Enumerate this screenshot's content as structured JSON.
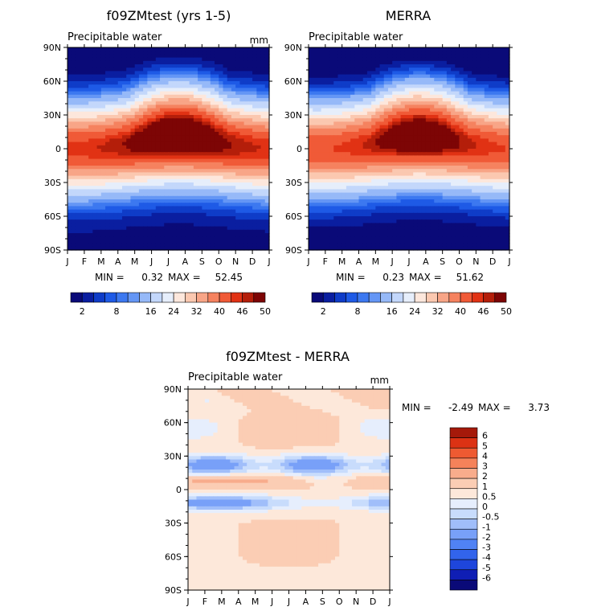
{
  "colors": {
    "abs_scale": [
      "#0a0a78",
      "#0a1ea0",
      "#0f3cc8",
      "#1e5ae6",
      "#3c78f0",
      "#6496f5",
      "#96b9f8",
      "#c3d7fb",
      "#e6eefb",
      "#fde7dc",
      "#fbc8b0",
      "#f8a587",
      "#f5825f",
      "#f05a37",
      "#e13214",
      "#b41e0a",
      "#7d0505"
    ],
    "diff_scale": [
      "#0a0a78",
      "#0f1eb4",
      "#1e46dc",
      "#3264ec",
      "#5082f4",
      "#78a0f8",
      "#a0befa",
      "#c8dcfc",
      "#e6eefd",
      "#fde8da",
      "#fbcdb4",
      "#f8ac8c",
      "#f5825a",
      "#ee5a32",
      "#dc3214",
      "#a5190a"
    ],
    "frame": "#000000"
  },
  "panels": [
    {
      "title": "f09ZMtest (yrs 1-5)",
      "subtitle": "Precipitable water",
      "units": "mm",
      "stats": {
        "min_label": "MIN =",
        "min": "0.32",
        "max_label": "MAX =",
        "max": "52.45"
      }
    },
    {
      "title": "MERRA",
      "subtitle": "Precipitable water",
      "units": "mm",
      "stats": {
        "min_label": "MIN =",
        "min": "0.23",
        "max_label": "MAX =",
        "max": "51.62"
      }
    },
    {
      "title": "f09ZMtest - MERRA",
      "subtitle": "Precipitable water",
      "units": "mm",
      "stats": {
        "min_label": "MIN =",
        "min": "-2.49",
        "max_label": "MAX =",
        "max": "3.73"
      }
    }
  ],
  "abs_colorbar_labels": [
    "2",
    "8",
    "16",
    "24",
    "32",
    "40",
    "46",
    "50"
  ],
  "diff_colorbar_labels": [
    "6",
    "5",
    "4",
    "3",
    "2",
    "1",
    "0.5",
    "0",
    "-0.5",
    "-1",
    "-2",
    "-3",
    "-4",
    "-5",
    "-6"
  ],
  "chart_data": [
    {
      "type": "heatmap",
      "title": "f09ZMtest (yrs 1-5)",
      "subtitle": "Precipitable water",
      "units": "mm",
      "x_ticks": [
        "J",
        "F",
        "M",
        "A",
        "M",
        "J",
        "J",
        "A",
        "S",
        "O",
        "N",
        "D",
        "J"
      ],
      "y_ticks": [
        "90N",
        "60N",
        "30N",
        "0",
        "30S",
        "60S",
        "90S"
      ],
      "ylim": [
        -90,
        90
      ],
      "contour_levels": [
        2,
        4,
        6,
        8,
        10,
        12,
        16,
        20,
        24,
        28,
        32,
        36,
        40,
        44,
        46,
        48,
        50
      ],
      "min": 0.32,
      "max": 52.45,
      "zonal_mean_by_lat": {
        "lat": [
          90,
          60,
          30,
          0,
          -30,
          -60,
          -90
        ],
        "value": [
          4,
          10,
          24,
          47,
          22,
          9,
          2
        ]
      },
      "seasonal_peak_month": "Aug"
    },
    {
      "type": "heatmap",
      "title": "MERRA",
      "subtitle": "Precipitable water",
      "units": "mm",
      "x_ticks": [
        "J",
        "F",
        "M",
        "A",
        "M",
        "J",
        "J",
        "A",
        "S",
        "O",
        "N",
        "D",
        "J"
      ],
      "y_ticks": [
        "90N",
        "60N",
        "30N",
        "0",
        "30S",
        "60S",
        "90S"
      ],
      "ylim": [
        -90,
        90
      ],
      "contour_levels": [
        2,
        4,
        6,
        8,
        10,
        12,
        16,
        20,
        24,
        28,
        32,
        36,
        40,
        44,
        46,
        48,
        50
      ],
      "min": 0.23,
      "max": 51.62,
      "zonal_mean_by_lat": {
        "lat": [
          90,
          60,
          30,
          0,
          -30,
          -60,
          -90
        ],
        "value": [
          3,
          9,
          23,
          46,
          21,
          8,
          1.5
        ]
      },
      "seasonal_peak_month": "Aug"
    },
    {
      "type": "heatmap",
      "title": "f09ZMtest - MERRA",
      "subtitle": "Precipitable water",
      "units": "mm",
      "x_ticks": [
        "J",
        "F",
        "M",
        "A",
        "M",
        "J",
        "J",
        "A",
        "S",
        "O",
        "N",
        "D",
        "J"
      ],
      "y_ticks": [
        "90N",
        "60N",
        "30N",
        "0",
        "30S",
        "60S",
        "90S"
      ],
      "ylim": [
        -90,
        90
      ],
      "contour_levels": [
        -6,
        -5,
        -4,
        -3,
        -2,
        -1,
        -0.5,
        0,
        0.5,
        1,
        2,
        3,
        4,
        5,
        6
      ],
      "min": -2.49,
      "max": 3.73,
      "zonal_mean_by_lat": {
        "lat": [
          90,
          60,
          40,
          22,
          8,
          -12,
          -35,
          -60,
          -90
        ],
        "value": [
          1.2,
          1.5,
          0.8,
          -1.5,
          0.9,
          -1.6,
          1.3,
          1.1,
          0.6
        ]
      }
    }
  ]
}
